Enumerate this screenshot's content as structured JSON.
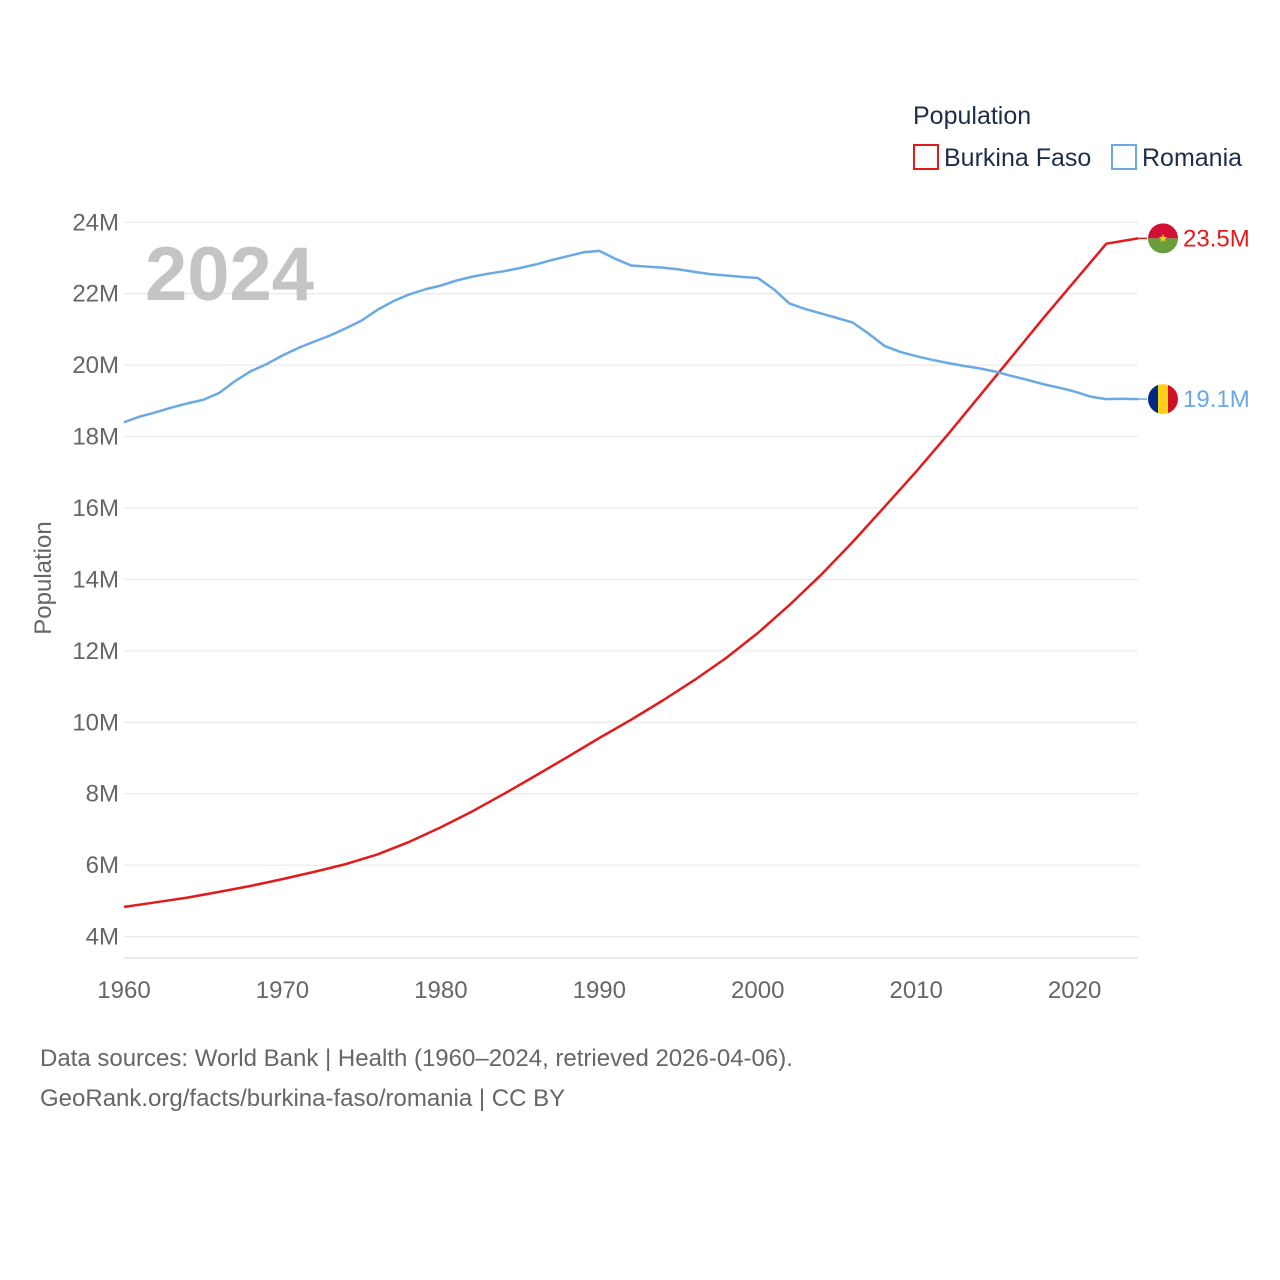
{
  "chart_data": {
    "type": "line",
    "title": "Population",
    "ylabel": "Population",
    "xlabel": "",
    "current_year": "2024",
    "xlim": [
      1960,
      2024
    ],
    "ylim": [
      3400000,
      24400000
    ],
    "x_ticks": [
      1960,
      1970,
      1980,
      1990,
      2000,
      2010,
      2020
    ],
    "y_ticks": [
      {
        "value": 4000000,
        "label": "4M"
      },
      {
        "value": 6000000,
        "label": "6M"
      },
      {
        "value": 8000000,
        "label": "8M"
      },
      {
        "value": 10000000,
        "label": "10M"
      },
      {
        "value": 12000000,
        "label": "12M"
      },
      {
        "value": 14000000,
        "label": "14M"
      },
      {
        "value": 16000000,
        "label": "16M"
      },
      {
        "value": 18000000,
        "label": "18M"
      },
      {
        "value": 20000000,
        "label": "20M"
      },
      {
        "value": 22000000,
        "label": "22M"
      },
      {
        "value": 24000000,
        "label": "24M"
      }
    ],
    "grid": true,
    "legend_position": "top-right",
    "series": [
      {
        "name": "Burkina Faso",
        "color": "#e31a1c",
        "end_label": "23.5M",
        "flag": "burkina-faso-flag-icon",
        "points": [
          [
            1960,
            4830000
          ],
          [
            1962,
            4960000
          ],
          [
            1964,
            5090000
          ],
          [
            1966,
            5250000
          ],
          [
            1968,
            5420000
          ],
          [
            1970,
            5610000
          ],
          [
            1972,
            5810000
          ],
          [
            1974,
            6030000
          ],
          [
            1976,
            6300000
          ],
          [
            1978,
            6650000
          ],
          [
            1980,
            7060000
          ],
          [
            1982,
            7510000
          ],
          [
            1984,
            8000000
          ],
          [
            1986,
            8510000
          ],
          [
            1988,
            9030000
          ],
          [
            1990,
            9560000
          ],
          [
            1992,
            10070000
          ],
          [
            1994,
            10610000
          ],
          [
            1996,
            11180000
          ],
          [
            1998,
            11800000
          ],
          [
            2000,
            12500000
          ],
          [
            2002,
            13280000
          ],
          [
            2004,
            14130000
          ],
          [
            2006,
            15050000
          ],
          [
            2008,
            16030000
          ],
          [
            2010,
            17020000
          ],
          [
            2012,
            18060000
          ],
          [
            2014,
            19140000
          ],
          [
            2016,
            20220000
          ],
          [
            2018,
            21300000
          ],
          [
            2020,
            22350000
          ],
          [
            2022,
            23400000
          ],
          [
            2024,
            23550000
          ]
        ]
      },
      {
        "name": "Romania",
        "color": "#6aa9e3",
        "end_label": "19.1M",
        "flag": "romania-flag-icon",
        "points": [
          [
            1960,
            18400000
          ],
          [
            1961,
            18560000
          ],
          [
            1962,
            18680000
          ],
          [
            1963,
            18810000
          ],
          [
            1964,
            18930000
          ],
          [
            1965,
            19030000
          ],
          [
            1966,
            19220000
          ],
          [
            1967,
            19550000
          ],
          [
            1968,
            19830000
          ],
          [
            1969,
            20030000
          ],
          [
            1970,
            20270000
          ],
          [
            1971,
            20480000
          ],
          [
            1972,
            20660000
          ],
          [
            1973,
            20830000
          ],
          [
            1974,
            21030000
          ],
          [
            1975,
            21250000
          ],
          [
            1976,
            21550000
          ],
          [
            1977,
            21790000
          ],
          [
            1978,
            21980000
          ],
          [
            1979,
            22120000
          ],
          [
            1980,
            22230000
          ],
          [
            1981,
            22370000
          ],
          [
            1982,
            22480000
          ],
          [
            1983,
            22560000
          ],
          [
            1984,
            22630000
          ],
          [
            1985,
            22720000
          ],
          [
            1986,
            22820000
          ],
          [
            1987,
            22940000
          ],
          [
            1988,
            23050000
          ],
          [
            1989,
            23160000
          ],
          [
            1990,
            23200000
          ],
          [
            1991,
            22980000
          ],
          [
            1992,
            22790000
          ],
          [
            1993,
            22760000
          ],
          [
            1994,
            22730000
          ],
          [
            1995,
            22680000
          ],
          [
            1996,
            22610000
          ],
          [
            1997,
            22550000
          ],
          [
            1998,
            22510000
          ],
          [
            1999,
            22470000
          ],
          [
            2000,
            22440000
          ],
          [
            2001,
            22130000
          ],
          [
            2002,
            21730000
          ],
          [
            2003,
            21570000
          ],
          [
            2004,
            21450000
          ],
          [
            2005,
            21320000
          ],
          [
            2006,
            21190000
          ],
          [
            2007,
            20880000
          ],
          [
            2008,
            20540000
          ],
          [
            2009,
            20370000
          ],
          [
            2010,
            20250000
          ],
          [
            2011,
            20150000
          ],
          [
            2012,
            20060000
          ],
          [
            2013,
            19980000
          ],
          [
            2014,
            19910000
          ],
          [
            2015,
            19820000
          ],
          [
            2016,
            19700000
          ],
          [
            2017,
            19590000
          ],
          [
            2018,
            19470000
          ],
          [
            2019,
            19370000
          ],
          [
            2020,
            19260000
          ],
          [
            2021,
            19120000
          ],
          [
            2022,
            19050000
          ],
          [
            2023,
            19060000
          ],
          [
            2024,
            19050000
          ]
        ]
      }
    ]
  },
  "legend": {
    "title": "Population",
    "items": [
      {
        "label": "Burkina Faso",
        "color": "#e31a1c"
      },
      {
        "label": "Romania",
        "color": "#6aa9e3"
      }
    ]
  },
  "footer": {
    "source_line": "Data sources: World Bank | Health (1960–2024, retrieved 2026-04-06).",
    "credit_line": "GeoRank.org/facts/burkina-faso/romania | CC BY"
  }
}
